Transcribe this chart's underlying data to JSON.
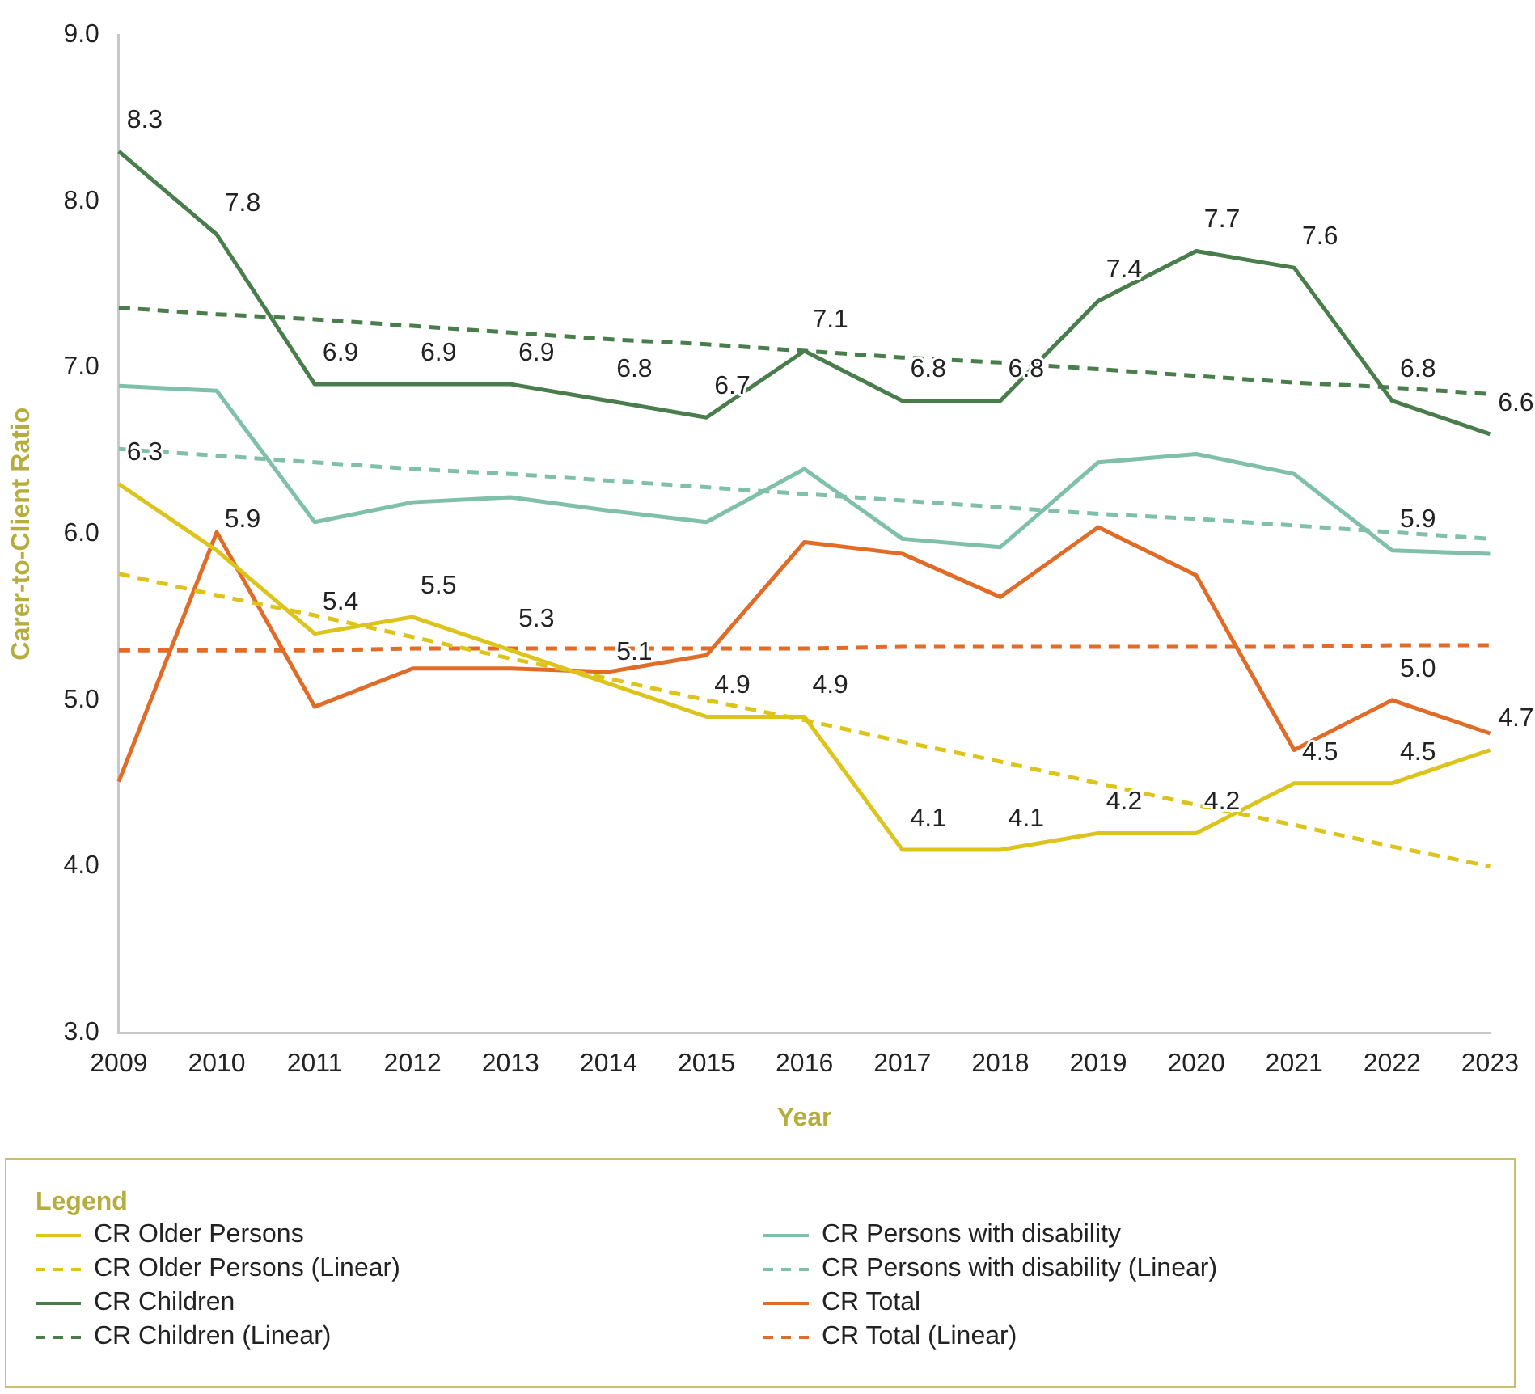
{
  "chart_data": {
    "type": "line",
    "xlabel": "Year",
    "ylabel": "Carer-to-Client Ratio",
    "legend_title": "Legend",
    "legend": "bottom",
    "grid": false,
    "marker": "none",
    "x": [
      2009,
      2010,
      2011,
      2012,
      2013,
      2014,
      2015,
      2016,
      2017,
      2018,
      2019,
      2020,
      2021,
      2022,
      2023
    ],
    "xlim": [
      2009,
      2023
    ],
    "xticks": [
      2009,
      2010,
      2011,
      2012,
      2013,
      2014,
      2015,
      2016,
      2017,
      2018,
      2019,
      2020,
      2021,
      2022,
      2023
    ],
    "ylim": [
      3,
      9
    ],
    "yticks": [
      {
        "value": 3,
        "label": "3.0"
      },
      {
        "value": 4,
        "label": "4.0"
      },
      {
        "value": 5,
        "label": "5.0"
      },
      {
        "value": 6,
        "label": "6.0"
      },
      {
        "value": 7,
        "label": "7.0"
      },
      {
        "value": 8,
        "label": "8.0"
      },
      {
        "value": 9,
        "label": "9.0"
      }
    ],
    "series": [
      {
        "name": "CR Older Persons",
        "color": "#dcc41c",
        "line_style": "solid",
        "values": [
          6.3,
          5.9,
          5.4,
          5.5,
          5.3,
          5.1,
          4.9,
          4.9,
          4.1,
          4.1,
          4.2,
          4.2,
          4.5,
          4.5,
          4.7
        ],
        "value_labels": [
          "6.3",
          "5.9",
          "5.4",
          "5.5",
          "5.3",
          "5.1",
          "4.9",
          "4.9",
          "4.1",
          "4.1",
          "4.2",
          "4.2",
          "4.5",
          "4.5",
          "4.7"
        ]
      },
      {
        "name": "CR Persons with disability",
        "color": "#80c0aa",
        "line_style": "solid",
        "values": [
          6.89,
          6.86,
          6.07,
          6.19,
          6.22,
          6.14,
          6.07,
          6.39,
          5.97,
          5.92,
          6.43,
          6.48,
          6.36,
          5.9,
          5.88
        ],
        "value_labels": [
          null,
          null,
          null,
          null,
          null,
          null,
          null,
          null,
          null,
          null,
          null,
          null,
          null,
          "5.9",
          null
        ]
      },
      {
        "name": "CR Older Persons (Linear)",
        "color": "#dcc41c",
        "line_style": "dashed",
        "values": [
          5.76,
          5.63,
          5.51,
          5.38,
          5.25,
          5.13,
          5.0,
          4.88,
          4.75,
          4.63,
          4.5,
          4.37,
          4.25,
          4.12,
          4.0
        ]
      },
      {
        "name": "CR Persons with disability (Linear)",
        "color": "#80c0aa",
        "line_style": "dashed",
        "values": [
          6.51,
          6.47,
          6.43,
          6.39,
          6.36,
          6.32,
          6.28,
          6.24,
          6.2,
          6.16,
          6.12,
          6.09,
          6.05,
          6.01,
          5.97
        ]
      },
      {
        "name": "CR Children",
        "color": "#4a7d4c",
        "line_style": "solid",
        "values": [
          8.3,
          7.8,
          6.9,
          6.9,
          6.9,
          6.8,
          6.7,
          7.1,
          6.8,
          6.8,
          7.4,
          7.7,
          7.6,
          6.8,
          6.6
        ],
        "value_labels": [
          "8.3",
          "7.8",
          "6.9",
          "6.9",
          "6.9",
          "6.8",
          "6.7",
          "7.1",
          "6.8",
          "6.8",
          "7.4",
          "7.7",
          "7.6",
          "6.8",
          "6.6"
        ]
      },
      {
        "name": "CR Total",
        "color": "#e06c28",
        "line_style": "solid",
        "values": [
          4.51,
          6.01,
          4.96,
          5.19,
          5.19,
          5.17,
          5.27,
          5.95,
          5.88,
          5.62,
          6.04,
          5.75,
          4.7,
          5.0,
          4.8
        ],
        "value_labels": [
          null,
          null,
          null,
          null,
          null,
          null,
          null,
          null,
          null,
          null,
          null,
          null,
          null,
          "5.0",
          null
        ]
      },
      {
        "name": "CR Children (Linear)",
        "color": "#4a7d4c",
        "line_style": "dashed",
        "values": [
          7.36,
          7.32,
          7.29,
          7.25,
          7.21,
          7.17,
          7.14,
          7.1,
          7.06,
          7.03,
          6.99,
          6.95,
          6.91,
          6.88,
          6.84
        ]
      },
      {
        "name": "CR Total (Linear)",
        "color": "#e06c28",
        "line_style": "dashed",
        "values": [
          5.3,
          5.3,
          5.3,
          5.31,
          5.31,
          5.31,
          5.31,
          5.31,
          5.32,
          5.32,
          5.32,
          5.32,
          5.32,
          5.33,
          5.33
        ]
      }
    ]
  }
}
